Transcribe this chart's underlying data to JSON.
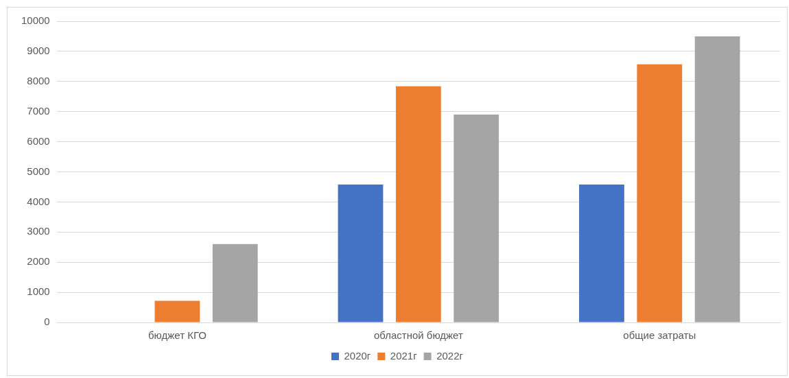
{
  "chart_data": {
    "type": "bar",
    "categories": [
      "бюджет КГО",
      "областной бюджет",
      "общие затраты"
    ],
    "series": [
      {
        "name": "2020г",
        "color": "#4472c4",
        "values": [
          0,
          4580,
          4580
        ]
      },
      {
        "name": "2021г",
        "color": "#ed7d31",
        "values": [
          720,
          7840,
          8570
        ]
      },
      {
        "name": "2022г",
        "color": "#a5a5a5",
        "values": [
          2600,
          6900,
          9500
        ]
      }
    ],
    "ylim": [
      0,
      10000
    ],
    "yticks": [
      0,
      1000,
      2000,
      3000,
      4000,
      5000,
      6000,
      7000,
      8000,
      9000,
      10000
    ],
    "grid": "y",
    "legend": "bottom"
  }
}
